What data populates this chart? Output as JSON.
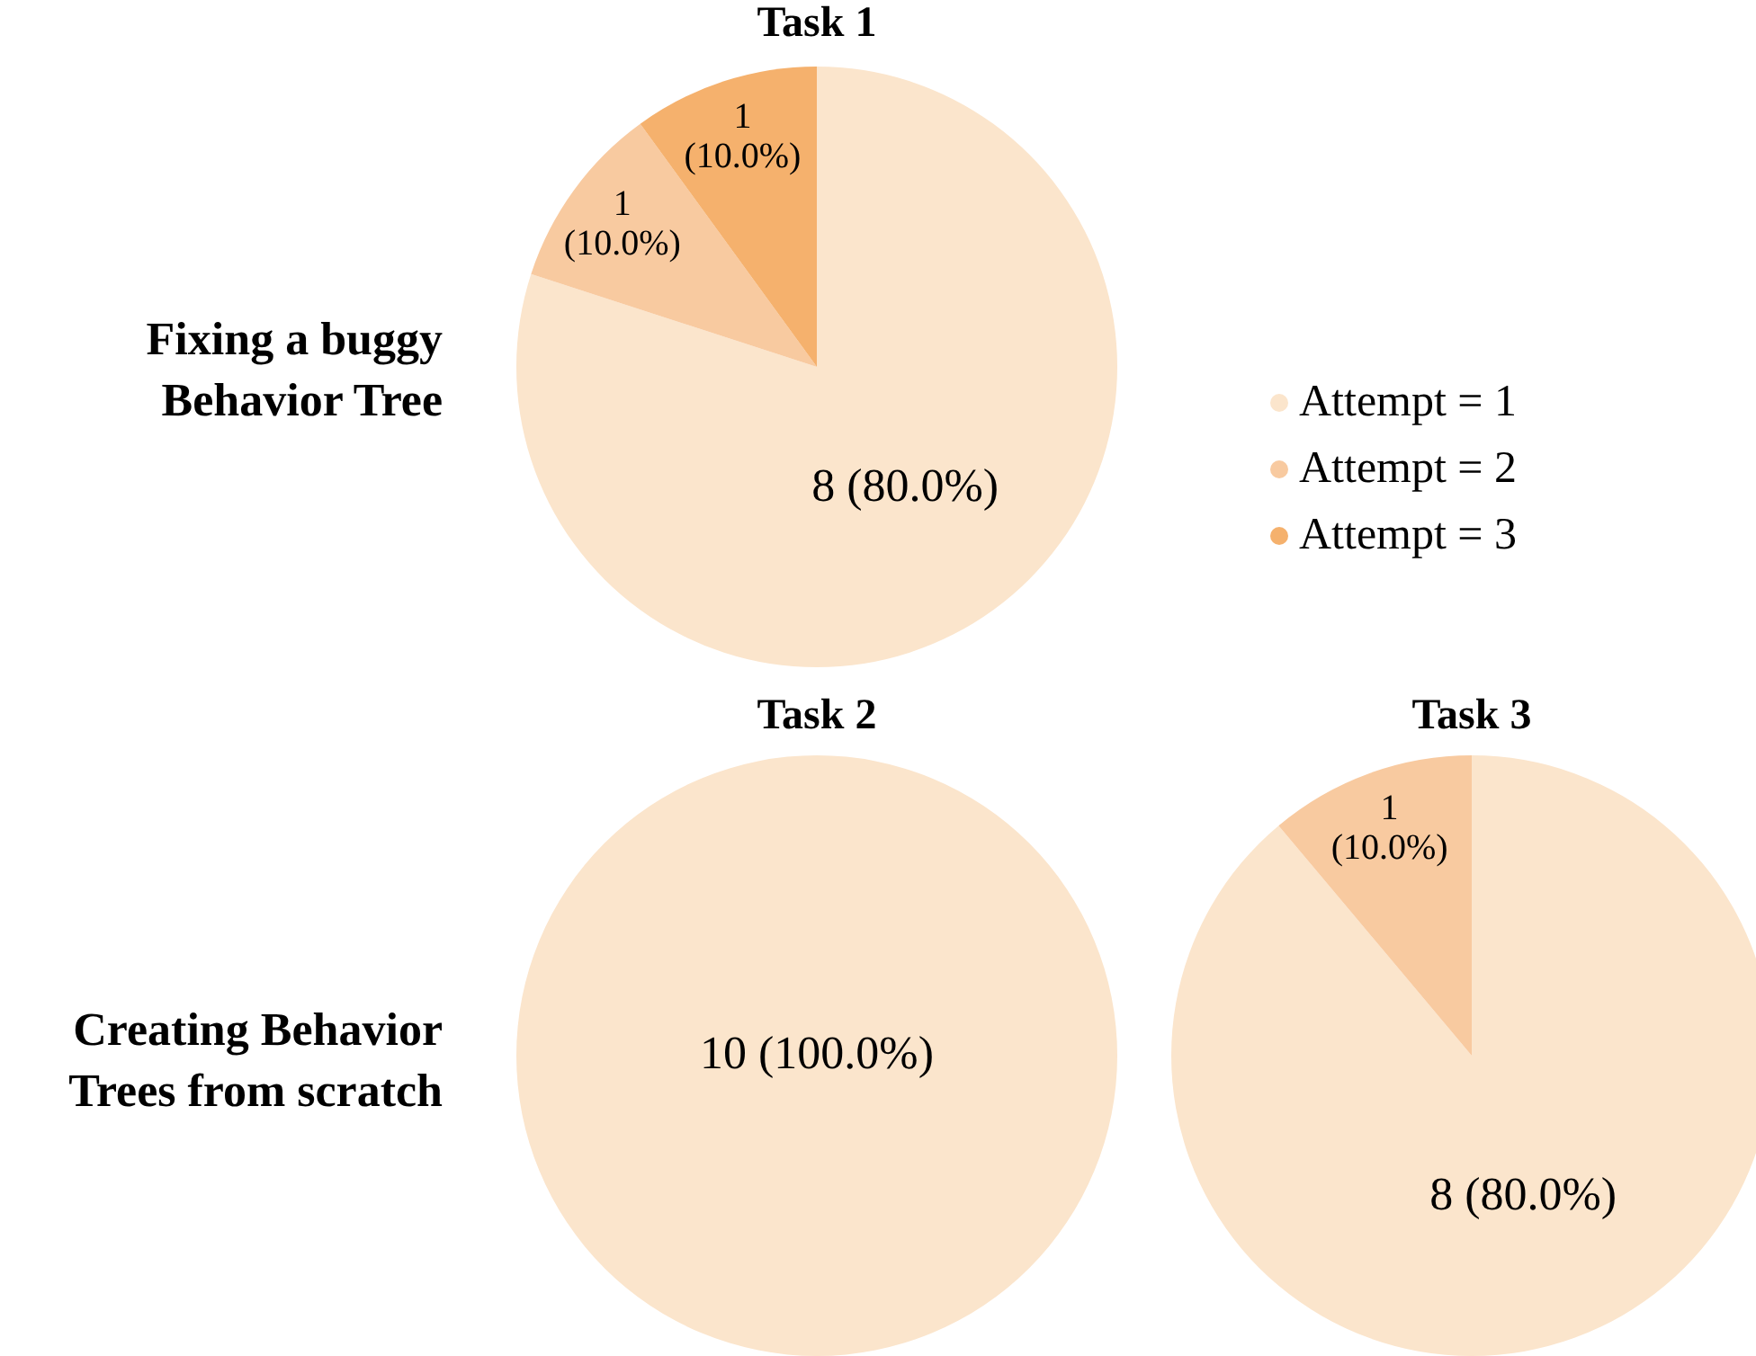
{
  "chart_data": [
    {
      "type": "pie",
      "title": "Task 1",
      "annotations": [
        "Fixing a buggy Behavior Tree"
      ],
      "categories": [
        "Attempt = 1",
        "Attempt = 2",
        "Attempt = 3"
      ],
      "values": [
        8,
        1,
        1
      ],
      "colors": [
        "#fbe5cc",
        "#f8caa0",
        "#f5b16d"
      ],
      "value_labels": [
        "8 (80.0%)",
        "1 (10.0%)",
        "1 (10.0%)"
      ],
      "legend": "right"
    },
    {
      "type": "pie",
      "title": "Task 2",
      "annotations": [
        "Creating Behavior Trees from scratch"
      ],
      "categories": [
        null
      ],
      "values": [
        10
      ],
      "colors": [
        "#fbe5cc"
      ],
      "value_labels": [
        "10 (100.0%)"
      ]
    },
    {
      "type": "pie",
      "title": "Task 3",
      "categories": [
        null,
        null
      ],
      "values": [
        8,
        1
      ],
      "colors": [
        "#fbe5cc",
        "#f8caa0"
      ],
      "value_labels": [
        "8 (80.0%)",
        "1 (10.0%)"
      ]
    }
  ]
}
